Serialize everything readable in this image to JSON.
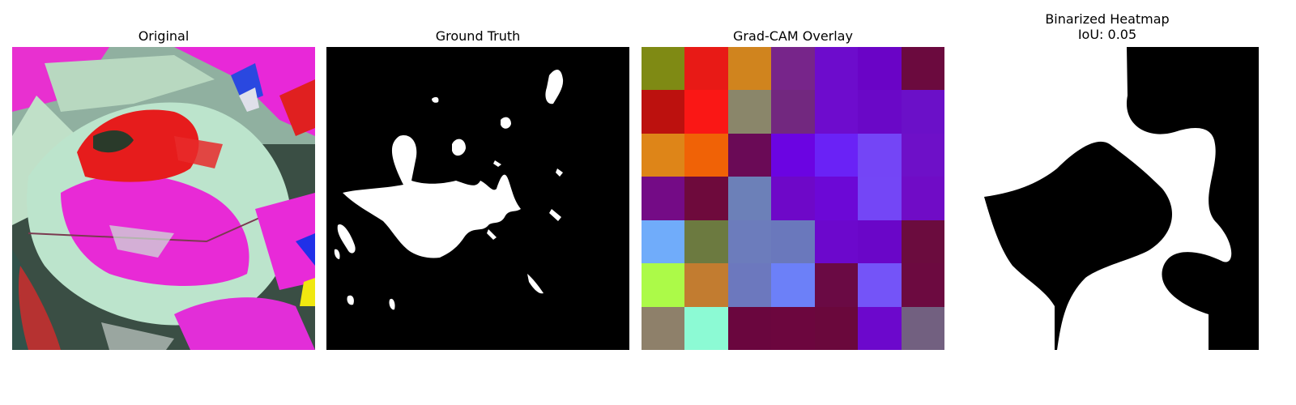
{
  "panels": [
    {
      "title": "Original"
    },
    {
      "title": "Ground Truth"
    },
    {
      "title": "Grad-CAM Overlay"
    },
    {
      "title": "Binarized Heatmap",
      "subtitle": "IoU: 0.05"
    }
  ],
  "gradcam_grid": [
    [
      "#7f8a14",
      "#e81a16",
      "#d0841e",
      "#77258a",
      "#6d0ccc",
      "#6a04c6",
      "#6b0a3e"
    ],
    [
      "#bc110e",
      "#fa1715",
      "#8a866a",
      "#72287f",
      "#6e0ccd",
      "#6a08c7",
      "#6b10c8"
    ],
    [
      "#de8518",
      "#f06206",
      "#6a0a56",
      "#6b04e2",
      "#6a22f6",
      "#7445f6",
      "#6e10c8"
    ],
    [
      "#740b86",
      "#6e0a3c",
      "#6c80b8",
      "#6e08c8",
      "#6c08d6",
      "#7446f6",
      "#700cc6"
    ],
    [
      "#70acfa",
      "#6c7a40",
      "#6c7cbc",
      "#6a78bc",
      "#6c08cc",
      "#6a06c8",
      "#6b0c3e"
    ],
    [
      "#acfa48",
      "#c27c30",
      "#6c78be",
      "#6c80f8",
      "#6a0a44",
      "#7454f8",
      "#6c0a40"
    ],
    [
      "#8e806a",
      "#8cfad4",
      "#6a063e",
      "#6c063e",
      "#6a083c",
      "#6c08cc",
      "#726080"
    ]
  ],
  "colors": {
    "leaf": "#b8e0c8",
    "magenta": "#f020d8",
    "red": "#e81a1a",
    "dark": "#223a30"
  }
}
